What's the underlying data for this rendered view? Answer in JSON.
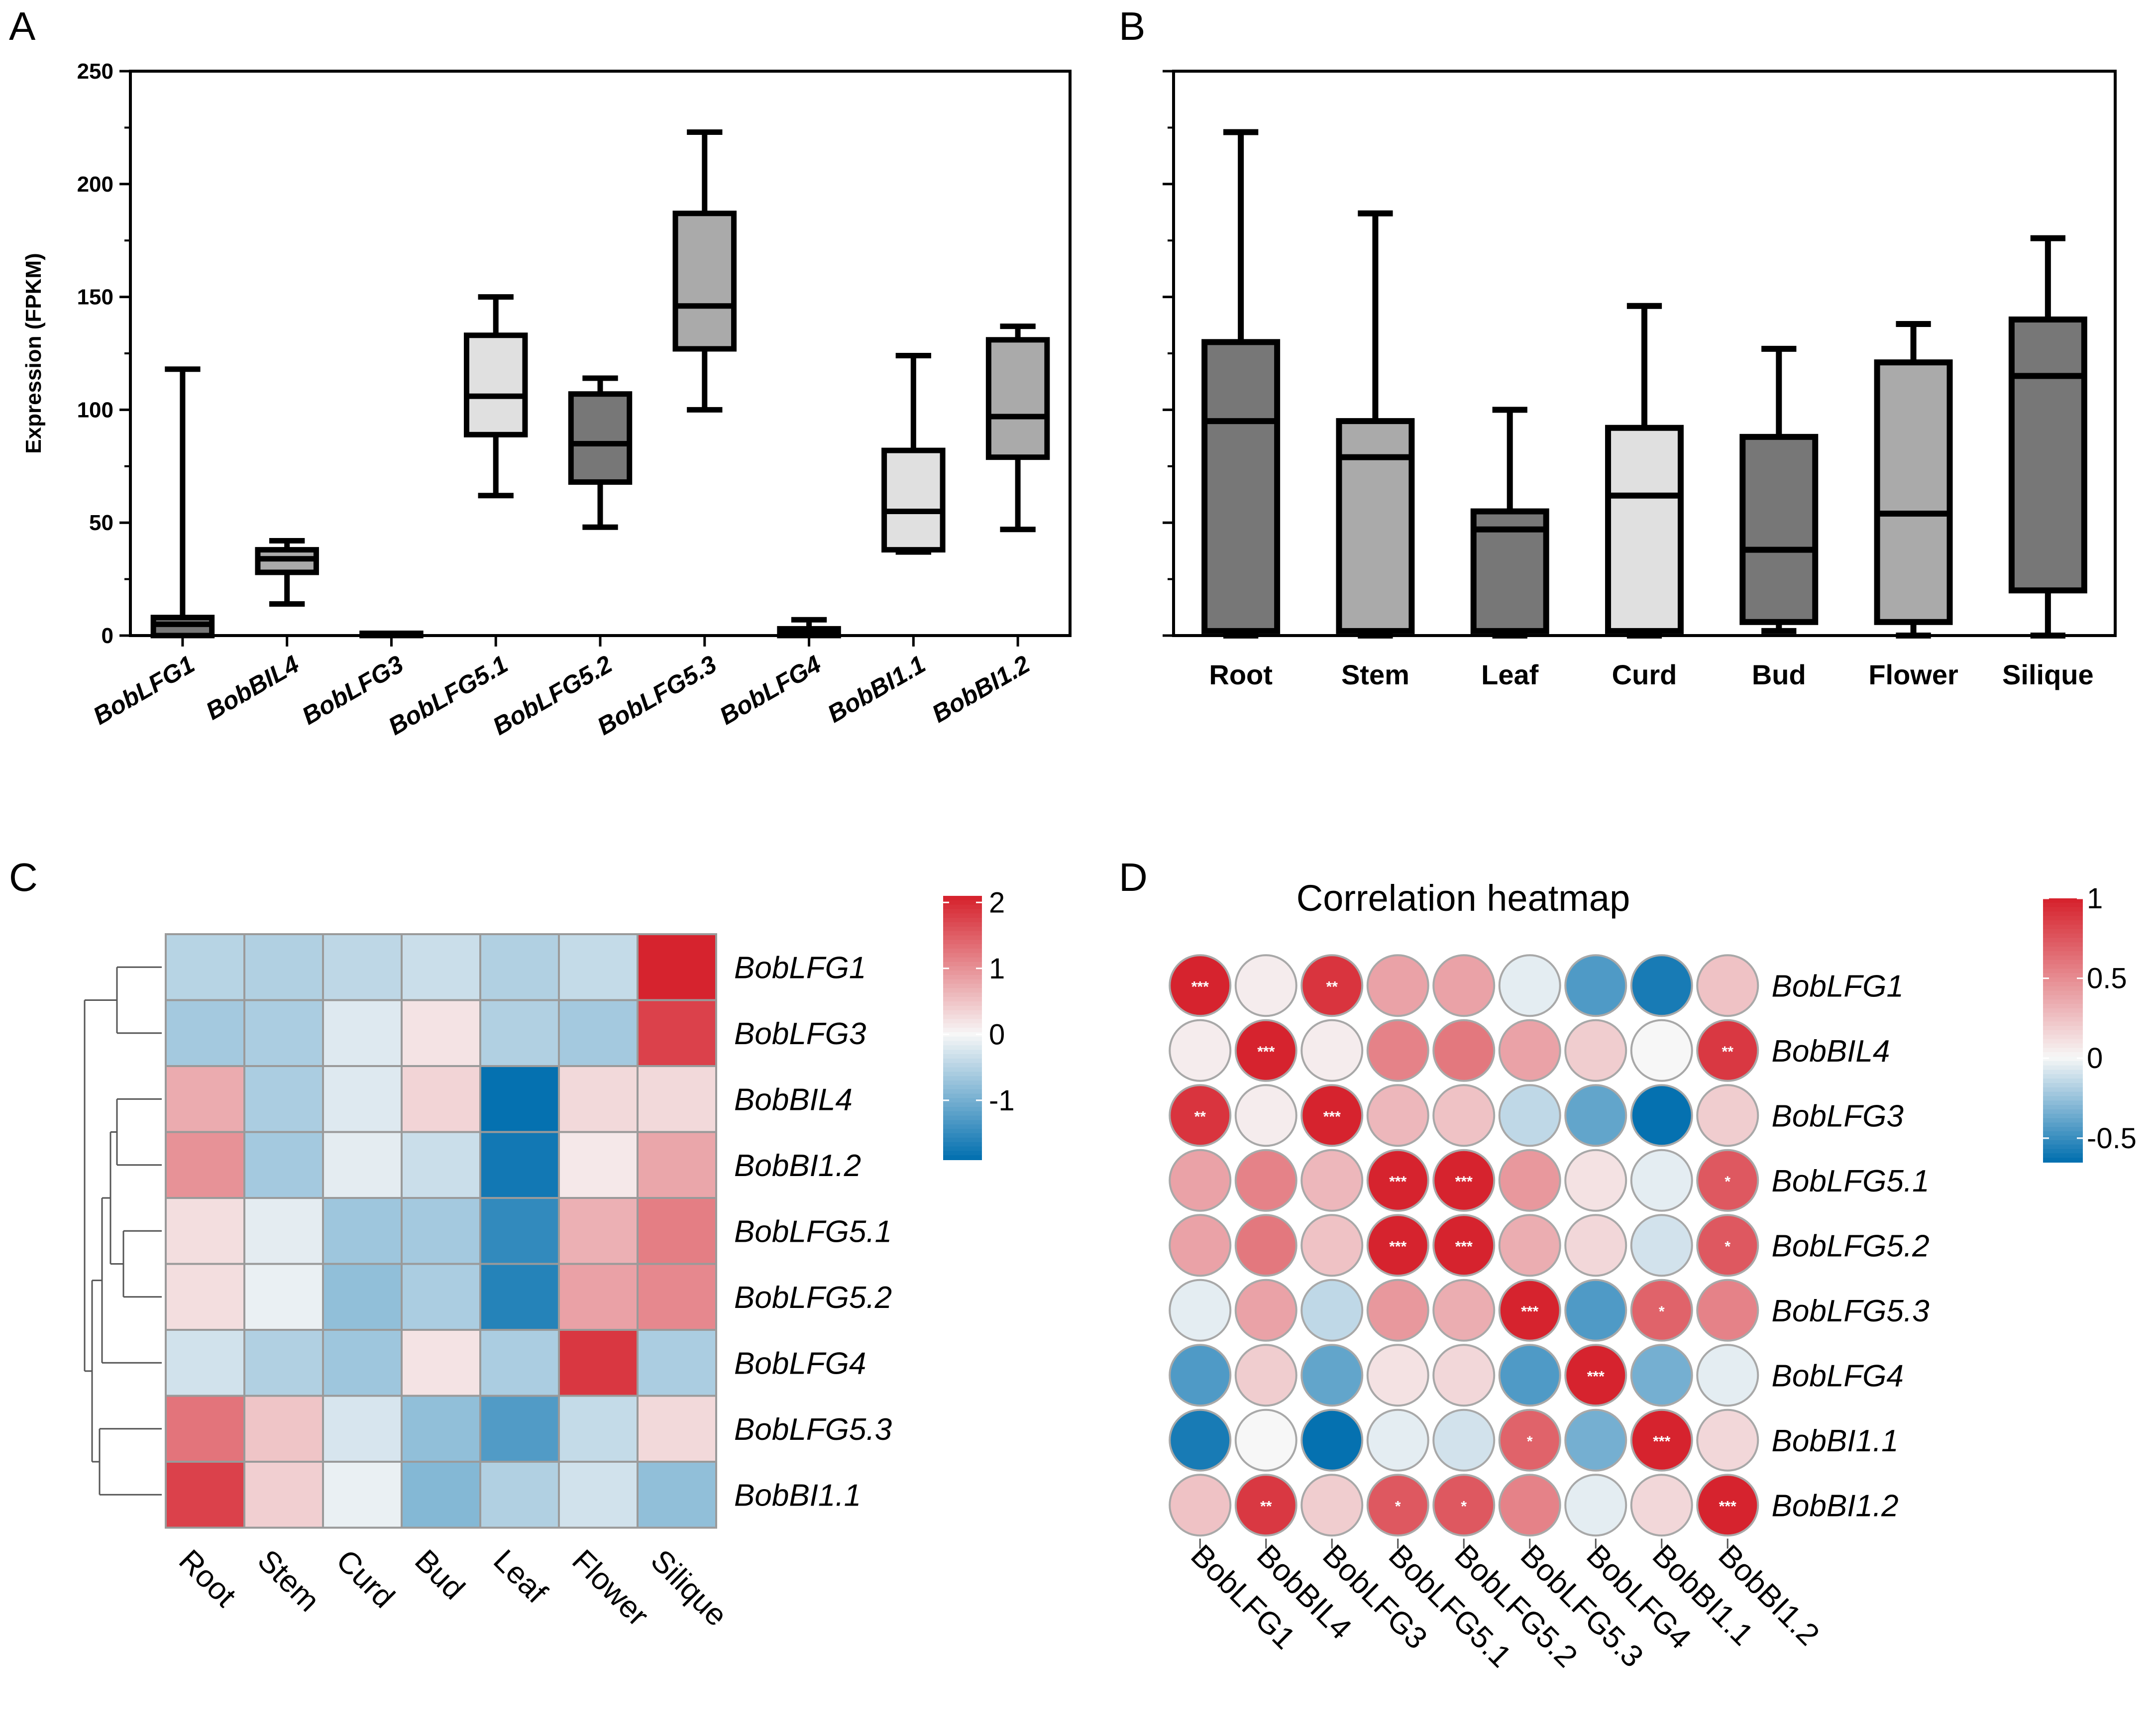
{
  "panels": [
    {
      "letter": "A"
    },
    {
      "letter": "B"
    },
    {
      "letter": "C"
    },
    {
      "letter": "D"
    }
  ],
  "colors": {
    "heat_low": "#0571b0",
    "heat_mid": "#f7f7f7",
    "heat_high": "#d6232e",
    "box_light": "#e0e0e0",
    "box_mid": "#aaaaaa",
    "box_dark": "#777777"
  },
  "chart_data": [
    {
      "id": "A",
      "type": "boxplot",
      "ylabel": "Expression  (FPKM)",
      "ylim": [
        0,
        250
      ],
      "yticks": [
        "0",
        "50",
        "100",
        "150",
        "200",
        "250"
      ],
      "categories": [
        "BobLFG1",
        "BobBIL4",
        "BobLFG3",
        "BobLFG5.1",
        "BobLFG5.2",
        "BobLFG5.3",
        "BobLFG4",
        "BobBI1.1",
        "BobBI1.2"
      ],
      "boxes": [
        {
          "min": 0,
          "q1": 0,
          "median": 5,
          "q3": 8,
          "max": 118,
          "shade": "dark"
        },
        {
          "min": 14,
          "q1": 28,
          "median": 34,
          "q3": 38,
          "max": 42,
          "shade": "mid"
        },
        {
          "min": 0,
          "q1": 0,
          "median": 0.5,
          "q3": 1,
          "max": 1,
          "shade": "mid"
        },
        {
          "min": 62,
          "q1": 89,
          "median": 106,
          "q3": 133,
          "max": 150,
          "shade": "light"
        },
        {
          "min": 48,
          "q1": 68,
          "median": 85,
          "q3": 107,
          "max": 114,
          "shade": "dark"
        },
        {
          "min": 100,
          "q1": 127,
          "median": 146,
          "q3": 187,
          "max": 223,
          "shade": "mid"
        },
        {
          "min": 0,
          "q1": 0,
          "median": 1,
          "q3": 3,
          "max": 7,
          "shade": "dark"
        },
        {
          "min": 37,
          "q1": 38,
          "median": 55,
          "q3": 82,
          "max": 124,
          "shade": "light"
        },
        {
          "min": 47,
          "q1": 79,
          "median": 97,
          "q3": 131,
          "max": 137,
          "shade": "mid"
        }
      ]
    },
    {
      "id": "B",
      "type": "boxplot",
      "ylim": [
        0,
        250
      ],
      "categories": [
        "Root",
        "Stem",
        "Leaf",
        "Curd",
        "Bud",
        "Flower",
        "Silique"
      ],
      "boxes": [
        {
          "min": 0,
          "q1": 2,
          "median": 95,
          "q3": 130,
          "max": 223,
          "shade": "dark"
        },
        {
          "min": 0,
          "q1": 2,
          "median": 79,
          "q3": 95,
          "max": 187,
          "shade": "mid"
        },
        {
          "min": 0,
          "q1": 2,
          "median": 47,
          "q3": 55,
          "max": 100,
          "shade": "dark"
        },
        {
          "min": 0,
          "q1": 2,
          "median": 62,
          "q3": 92,
          "max": 146,
          "shade": "light"
        },
        {
          "min": 2,
          "q1": 6,
          "median": 38,
          "q3": 88,
          "max": 127,
          "shade": "dark"
        },
        {
          "min": 0,
          "q1": 6,
          "median": 54,
          "q3": 121,
          "max": 138,
          "shade": "mid"
        },
        {
          "min": 0,
          "q1": 20,
          "median": 115,
          "q3": 140,
          "max": 176,
          "shade": "dark"
        }
      ]
    },
    {
      "id": "C",
      "type": "heatmap",
      "columns": [
        "Root",
        "Stem",
        "Curd",
        "Bud",
        "Leaf",
        "Flower",
        "Silique"
      ],
      "rows": [
        "BobLFG1",
        "BobLFG3",
        "BobBIL4",
        "BobBI1.2",
        "BobLFG5.1",
        "BobLFG5.2",
        "BobLFG4",
        "BobLFG5.3",
        "BobBI1.1"
      ],
      "values": [
        [
          -0.5,
          -0.55,
          -0.45,
          -0.35,
          -0.55,
          -0.4,
          2.1
        ],
        [
          -0.65,
          -0.6,
          -0.2,
          0.2,
          -0.55,
          -0.65,
          1.8
        ],
        [
          0.75,
          -0.6,
          -0.2,
          0.35,
          -1.95,
          0.3,
          0.3
        ],
        [
          1.0,
          -0.65,
          -0.15,
          -0.35,
          -1.8,
          0.15,
          0.8
        ],
        [
          0.25,
          -0.15,
          -0.7,
          -0.65,
          -1.55,
          0.7,
          1.2
        ],
        [
          0.25,
          -0.1,
          -0.8,
          -0.6,
          -1.65,
          0.85,
          1.1
        ],
        [
          -0.3,
          -0.55,
          -0.7,
          0.2,
          -0.6,
          1.9,
          -0.6
        ],
        [
          1.3,
          0.5,
          -0.25,
          -0.8,
          -1.3,
          -0.4,
          0.3
        ],
        [
          1.8,
          0.4,
          -0.1,
          -0.9,
          -0.55,
          -0.3,
          -0.8
        ]
      ],
      "legend": {
        "ticks": [
          "2",
          "1",
          "0",
          "-1"
        ],
        "tick_values": [
          2,
          1,
          0,
          -1
        ],
        "range": [
          -1.9,
          2.1
        ]
      }
    },
    {
      "id": "D",
      "type": "correlation_heatmap",
      "title": "Correlation heatmap",
      "labels": [
        "BobLFG1",
        "BobBIL4",
        "BobLFG3",
        "BobLFG5.1",
        "BobLFG5.2",
        "BobLFG5.3",
        "BobLFG4",
        "BobBI1.1",
        "BobBI1.2"
      ],
      "values": [
        [
          1.0,
          0.05,
          0.92,
          0.4,
          0.4,
          -0.05,
          -0.45,
          -0.6,
          0.25
        ],
        [
          0.05,
          1.0,
          0.05,
          0.55,
          0.6,
          0.4,
          0.2,
          0.0,
          0.9
        ],
        [
          0.92,
          0.05,
          1.0,
          0.3,
          0.25,
          -0.15,
          -0.4,
          -0.65,
          0.2
        ],
        [
          0.4,
          0.55,
          0.3,
          1.0,
          1.0,
          0.45,
          0.1,
          -0.05,
          0.75
        ],
        [
          0.4,
          0.6,
          0.25,
          1.0,
          1.0,
          0.35,
          0.15,
          -0.1,
          0.75
        ],
        [
          -0.05,
          0.4,
          -0.15,
          0.45,
          0.35,
          1.0,
          -0.45,
          0.7,
          0.55
        ],
        [
          -0.45,
          0.2,
          -0.4,
          0.1,
          0.15,
          -0.45,
          1.0,
          -0.35,
          -0.05
        ],
        [
          -0.6,
          0.0,
          -0.65,
          -0.05,
          -0.1,
          0.7,
          -0.35,
          1.0,
          0.15
        ],
        [
          0.25,
          0.9,
          0.2,
          0.75,
          0.75,
          0.55,
          -0.05,
          0.15,
          1.0
        ]
      ],
      "significance": [
        [
          "***",
          "",
          "**",
          "",
          "",
          "",
          "",
          "",
          ""
        ],
        [
          "",
          "***",
          "",
          "",
          "",
          "",
          "",
          "",
          "**"
        ],
        [
          "**",
          "",
          "***",
          "",
          "",
          "",
          "",
          "",
          ""
        ],
        [
          "",
          "",
          "",
          "***",
          "***",
          "",
          "",
          "",
          "*"
        ],
        [
          "",
          "",
          "",
          "***",
          "***",
          "",
          "",
          "",
          "*"
        ],
        [
          "",
          "",
          "",
          "",
          "",
          "***",
          "",
          "*",
          ""
        ],
        [
          "",
          "",
          "",
          "",
          "",
          "",
          "***",
          "",
          ""
        ],
        [
          "",
          "",
          "",
          "",
          "",
          "*",
          "",
          "***",
          ""
        ],
        [
          "",
          "**",
          "",
          "*",
          "*",
          "",
          "",
          "",
          "***"
        ]
      ],
      "legend": {
        "ticks": [
          "1",
          "0.5",
          "0",
          "-0.5"
        ],
        "tick_values": [
          1,
          0.5,
          0,
          -0.5
        ],
        "range": [
          -0.65,
          1.0
        ]
      }
    }
  ]
}
